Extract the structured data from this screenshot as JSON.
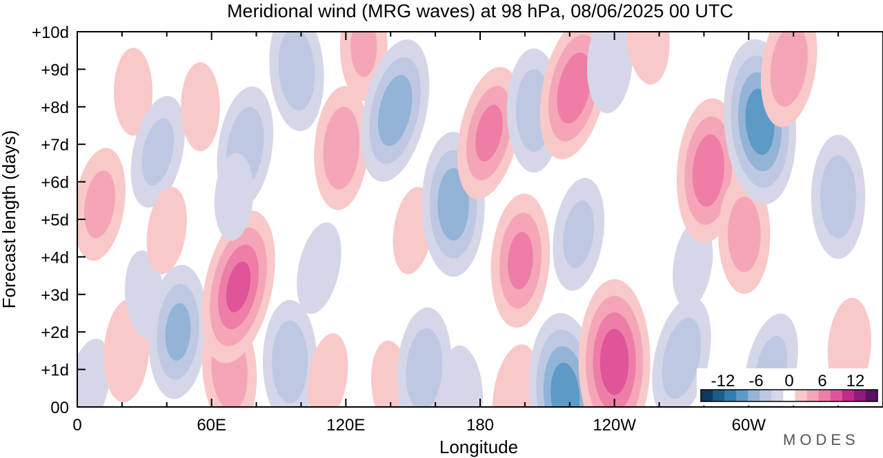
{
  "chart_data": {
    "type": "heatmap",
    "title": "Meridional wind (MRG waves) at  98 hPa,  08/06/2025  00 UTC",
    "xlabel": "Longitude",
    "ylabel": "Forecast length (days)",
    "x_ticks": [
      "0",
      "60E",
      "120E",
      "180",
      "120W",
      "60W"
    ],
    "y_ticks": [
      "00",
      "+1d",
      "+2d",
      "+3d",
      "+4d",
      "+5d",
      "+6d",
      "+7d",
      "+8d",
      "+9d",
      "+10d"
    ],
    "xlim": [
      0,
      360
    ],
    "ylim": [
      0,
      10
    ],
    "colorbar": {
      "tick_labels": [
        "-12",
        "-6",
        "0",
        "6",
        "12"
      ],
      "levels": [
        -14,
        -12,
        -10,
        -8,
        -6,
        -4,
        -2,
        2,
        4,
        6,
        8,
        10,
        12,
        14
      ],
      "colors": [
        "#0d3a5c",
        "#1b5d89",
        "#2f7eb1",
        "#5d9ac6",
        "#93b4d6",
        "#bfc8e2",
        "#d5d6e8",
        "#ffffff",
        "#f9c8c8",
        "#f4a6b8",
        "#ee7ea7",
        "#e0559a",
        "#c22a8a",
        "#8e1d7a",
        "#5a1163"
      ],
      "placement": "bottom-right"
    },
    "features": [
      {
        "lon": 5,
        "day": 0.6,
        "v": -3
      },
      {
        "lon": 10,
        "day": 5.4,
        "v": 5
      },
      {
        "lon": 22,
        "day": 1.5,
        "v": 4
      },
      {
        "lon": 25,
        "day": 8.4,
        "v": 2.5
      },
      {
        "lon": 30,
        "day": 3.0,
        "v": -2.5
      },
      {
        "lon": 36,
        "day": 6.8,
        "v": -5
      },
      {
        "lon": 40,
        "day": 4.7,
        "v": 2.5
      },
      {
        "lon": 45,
        "day": 2.0,
        "v": -7
      },
      {
        "lon": 55,
        "day": 8.0,
        "v": 2.6
      },
      {
        "lon": 68,
        "day": 1.0,
        "v": 6
      },
      {
        "lon": 72,
        "day": 3.2,
        "v": 9
      },
      {
        "lon": 75,
        "day": 6.9,
        "v": -6
      },
      {
        "lon": 70,
        "day": 5.6,
        "v": -2.5
      },
      {
        "lon": 95,
        "day": 1.2,
        "v": -6
      },
      {
        "lon": 98,
        "day": 9.0,
        "v": -6
      },
      {
        "lon": 108,
        "day": 3.7,
        "v": -3
      },
      {
        "lon": 112,
        "day": 0.8,
        "v": 2.5
      },
      {
        "lon": 118,
        "day": 6.9,
        "v": 6
      },
      {
        "lon": 128,
        "day": 9.6,
        "v": 4.5
      },
      {
        "lon": 140,
        "day": 0.6,
        "v": 2.5
      },
      {
        "lon": 142,
        "day": 7.9,
        "v": -8
      },
      {
        "lon": 150,
        "day": 4.7,
        "v": 2.5
      },
      {
        "lon": 155,
        "day": 1.0,
        "v": -6
      },
      {
        "lon": 168,
        "day": 5.4,
        "v": -8
      },
      {
        "lon": 172,
        "day": 0.4,
        "v": -3
      },
      {
        "lon": 184,
        "day": 7.3,
        "v": 7
      },
      {
        "lon": 196,
        "day": 0.3,
        "v": 4
      },
      {
        "lon": 198,
        "day": 3.9,
        "v": 7
      },
      {
        "lon": 204,
        "day": 7.9,
        "v": -6
      },
      {
        "lon": 218,
        "day": 0.3,
        "v": -10
      },
      {
        "lon": 222,
        "day": 8.5,
        "v": 8
      },
      {
        "lon": 224,
        "day": 4.6,
        "v": -5
      },
      {
        "lon": 238,
        "day": 9.2,
        "v": -4
      },
      {
        "lon": 240,
        "day": 1.2,
        "v": 10
      },
      {
        "lon": 255,
        "day": 9.9,
        "v": 3.5
      },
      {
        "lon": 270,
        "day": 1.3,
        "v": -6
      },
      {
        "lon": 275,
        "day": 3.8,
        "v": -2.5
      },
      {
        "lon": 282,
        "day": 6.3,
        "v": 8
      },
      {
        "lon": 298,
        "day": 4.6,
        "v": 5.5
      },
      {
        "lon": 305,
        "day": 7.6,
        "v": -10
      },
      {
        "lon": 310,
        "day": 1.0,
        "v": -5
      },
      {
        "lon": 318,
        "day": 9.1,
        "v": 6
      },
      {
        "lon": 345,
        "day": 1.6,
        "v": 3.5
      },
      {
        "lon": 340,
        "day": 5.6,
        "v": -6
      }
    ]
  },
  "watermark": "MODES"
}
